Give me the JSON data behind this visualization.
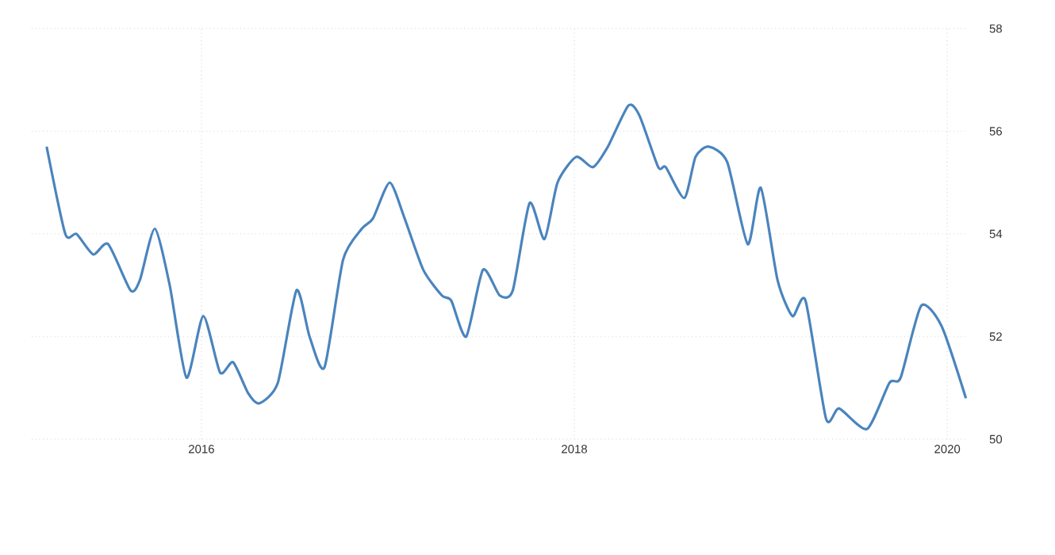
{
  "chart_data": {
    "type": "line",
    "xlim": [
      2015.09,
      2020.11
    ],
    "xticks": [
      2016,
      2018,
      2020
    ],
    "ylim": [
      50,
      58
    ],
    "yticks": [
      50,
      52,
      54,
      56,
      58
    ],
    "grid": true,
    "line_style": "solid",
    "series": [
      {
        "color": "#4a84bd",
        "x": [
          2015.17,
          2015.27,
          2015.33,
          2015.42,
          2015.5,
          2015.62,
          2015.67,
          2015.75,
          2015.83,
          2015.92,
          2016.01,
          2016.1,
          2016.17,
          2016.25,
          2016.31,
          2016.41,
          2016.51,
          2016.58,
          2016.66,
          2016.76,
          2016.86,
          2016.92,
          2017.01,
          2017.09,
          2017.19,
          2017.29,
          2017.34,
          2017.42,
          2017.51,
          2017.6,
          2017.67,
          2017.76,
          2017.84,
          2017.91,
          2018.01,
          2018.1,
          2018.18,
          2018.29,
          2018.35,
          2018.45,
          2018.49,
          2018.59,
          2018.65,
          2018.72,
          2018.82,
          2018.93,
          2019.0,
          2019.09,
          2019.17,
          2019.24,
          2019.35,
          2019.42,
          2019.57,
          2019.69,
          2019.75,
          2019.86,
          2019.97,
          2020.1
        ],
        "values": [
          55.7,
          54.0,
          54.0,
          53.6,
          53.8,
          52.9,
          53.1,
          54.1,
          53.0,
          51.2,
          52.4,
          51.3,
          51.5,
          50.9,
          50.7,
          51.1,
          52.9,
          52.0,
          51.4,
          53.5,
          54.1,
          54.3,
          55.0,
          54.3,
          53.3,
          52.8,
          52.7,
          52.0,
          53.3,
          52.8,
          52.9,
          54.6,
          53.9,
          55.0,
          55.5,
          55.3,
          55.7,
          56.5,
          56.3,
          55.3,
          55.3,
          54.7,
          55.5,
          55.7,
          55.4,
          53.8,
          54.9,
          53.1,
          52.4,
          52.7,
          50.4,
          50.6,
          50.2,
          51.1,
          51.2,
          52.6,
          52.2,
          50.8
        ]
      }
    ]
  }
}
